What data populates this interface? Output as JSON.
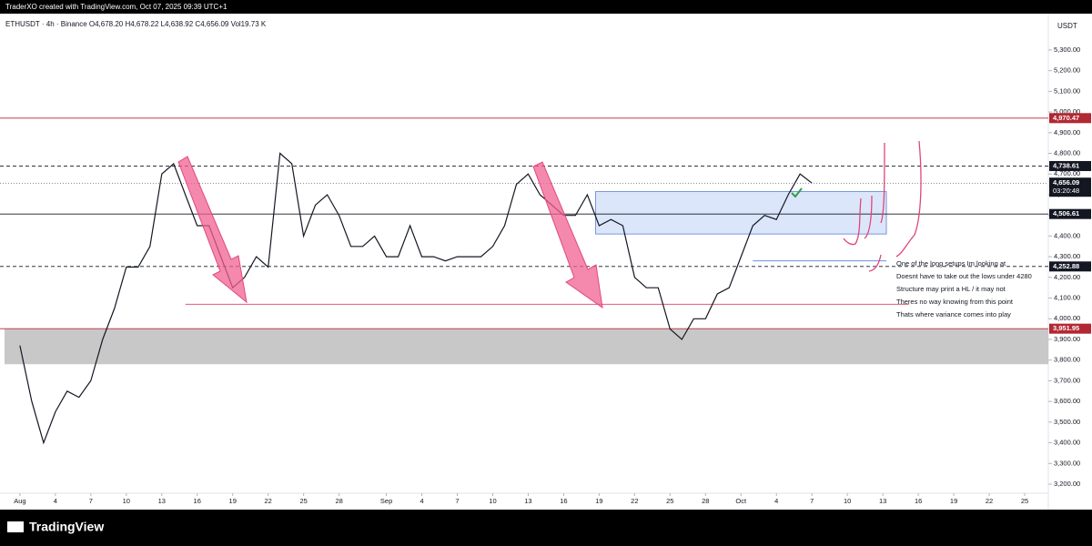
{
  "header": {
    "credit": "TraderXO created with TradingView.com, Oct 07, 2025 09:39 UTC+1",
    "legend": "ETHUSDT · 4h · Binance  O4,678.20  H4,678.22  L4,638.92  C4,656.09  Vol19.73 K",
    "currency": "USDT"
  },
  "footer": {
    "logo": "TradingView"
  },
  "chart_data": {
    "type": "line",
    "x": [
      0,
      1,
      2,
      3,
      4,
      5,
      6,
      7,
      8,
      9,
      10,
      11,
      12,
      13,
      14,
      15,
      16,
      17,
      18,
      19,
      20,
      21,
      22,
      23,
      24,
      25,
      26,
      27,
      28,
      29,
      30,
      31,
      32,
      33,
      34,
      35,
      36,
      37,
      38,
      39,
      40,
      41,
      42,
      43,
      44,
      45,
      46,
      47,
      48,
      49,
      50,
      51,
      52,
      53,
      54,
      55,
      56,
      57,
      58,
      59,
      60,
      61,
      62,
      63,
      64,
      65,
      66,
      67
    ],
    "series": [
      {
        "name": "ETHUSDT",
        "color": "#131722",
        "values": [
          3870,
          3600,
          3400,
          3550,
          3650,
          3620,
          3700,
          3900,
          4050,
          4250,
          4250,
          4350,
          4700,
          4750,
          4600,
          4450,
          4450,
          4300,
          4150,
          4200,
          4300,
          4250,
          4800,
          4750,
          4400,
          4550,
          4600,
          4500,
          4350,
          4350,
          4400,
          4300,
          4300,
          4450,
          4300,
          4300,
          4280,
          4300,
          4300,
          4300,
          4350,
          4450,
          4650,
          4700,
          4600,
          4550,
          4500,
          4500,
          4600,
          4450,
          4480,
          4450,
          4200,
          4150,
          4150,
          3950,
          3900,
          4000,
          4000,
          4120,
          4150,
          4300,
          4450,
          4500,
          4480,
          4600,
          4700,
          4656
        ]
      }
    ],
    "xlim": [
      -1.3,
      87
    ],
    "ylim": [
      3156,
      5467
    ],
    "xticks": [
      {
        "value": 0,
        "label": "Aug"
      },
      {
        "value": 3,
        "label": "4"
      },
      {
        "value": 6,
        "label": "7"
      },
      {
        "value": 9,
        "label": "10"
      },
      {
        "value": 12,
        "label": "13"
      },
      {
        "value": 15,
        "label": "16"
      },
      {
        "value": 18,
        "label": "19"
      },
      {
        "value": 21,
        "label": "22"
      },
      {
        "value": 24,
        "label": "25"
      },
      {
        "value": 27,
        "label": "28"
      },
      {
        "value": 31,
        "label": "Sep"
      },
      {
        "value": 34,
        "label": "4"
      },
      {
        "value": 37,
        "label": "7"
      },
      {
        "value": 40,
        "label": "10"
      },
      {
        "value": 43,
        "label": "13"
      },
      {
        "value": 46,
        "label": "16"
      },
      {
        "value": 49,
        "label": "19"
      },
      {
        "value": 52,
        "label": "22"
      },
      {
        "value": 55,
        "label": "25"
      },
      {
        "value": 58,
        "label": "28"
      },
      {
        "value": 61,
        "label": "Oct"
      },
      {
        "value": 64,
        "label": "4"
      },
      {
        "value": 67,
        "label": "7"
      },
      {
        "value": 70,
        "label": "10"
      },
      {
        "value": 73,
        "label": "13"
      },
      {
        "value": 76,
        "label": "16"
      },
      {
        "value": 79,
        "label": "19"
      },
      {
        "value": 82,
        "label": "22"
      },
      {
        "value": 85,
        "label": "25"
      }
    ],
    "yticks": [
      {
        "value": 3200,
        "label": "3,200.00"
      },
      {
        "value": 3300,
        "label": "3,300.00"
      },
      {
        "value": 3400,
        "label": "3,400.00"
      },
      {
        "value": 3500,
        "label": "3,500.00"
      },
      {
        "value": 3600,
        "label": "3,600.00"
      },
      {
        "value": 3700,
        "label": "3,700.00"
      },
      {
        "value": 3800,
        "label": "3,800.00"
      },
      {
        "value": 3900,
        "label": "3,900.00"
      },
      {
        "value": 4000,
        "label": "4,000.00"
      },
      {
        "value": 4100,
        "label": "4,100.00"
      },
      {
        "value": 4200,
        "label": "4,200.00"
      },
      {
        "value": 4300,
        "label": "4,300.00"
      },
      {
        "value": 4400,
        "label": "4,400.00"
      },
      {
        "value": 4500,
        "label": "4,500.00"
      },
      {
        "value": 4600,
        "label": "4,600.00"
      },
      {
        "value": 4700,
        "label": "4,700.00"
      },
      {
        "value": 4800,
        "label": "4,800.00"
      },
      {
        "value": 4900,
        "label": "4,900.00"
      },
      {
        "value": 5000,
        "label": "5,000.00"
      },
      {
        "value": 5100,
        "label": "5,100.00"
      },
      {
        "value": 5200,
        "label": "5,200.00"
      },
      {
        "value": 5300,
        "label": "5,300.00"
      }
    ],
    "levels": [
      {
        "value": 4970.47,
        "label": "4,970.47",
        "color": "#b22833",
        "dash": false
      },
      {
        "value": 4738.61,
        "label": "4,738.61",
        "color": "#131722",
        "dash": true
      },
      {
        "value": 4506.61,
        "label": "4,506.61",
        "color": "#131722",
        "dash": false
      },
      {
        "value": 4252.88,
        "label": "4,252.88",
        "color": "#131722",
        "dash": true
      },
      {
        "value": 3951.95,
        "label": "3,951.95",
        "color": "#b22833",
        "dash": false
      }
    ],
    "current": {
      "value": 4656.09,
      "label": "4,656.09",
      "countdown": "03:20:48"
    },
    "zones": [
      {
        "top": 4615,
        "bottom": 4410,
        "x": [
          48.7,
          73.3
        ],
        "color": "#dce6fb"
      },
      {
        "top": 3950,
        "bottom": 3780,
        "x": [
          -1.3,
          87
        ],
        "color": "#c8c8c8"
      }
    ],
    "segments": [
      {
        "value": 4070,
        "x": [
          14,
          75.2
        ],
        "color": "#e35a7a"
      },
      {
        "value": 4280,
        "x": [
          62,
          73.3
        ],
        "color": "#5b7fd6"
      }
    ],
    "annotations": [
      "One of the long setups Im looking at",
      "Doesnt have to take out the lows under 4280",
      "Structure may print a HL / it may not",
      "Theres no way knowing from this point",
      "Thats where variance comes into play"
    ]
  }
}
